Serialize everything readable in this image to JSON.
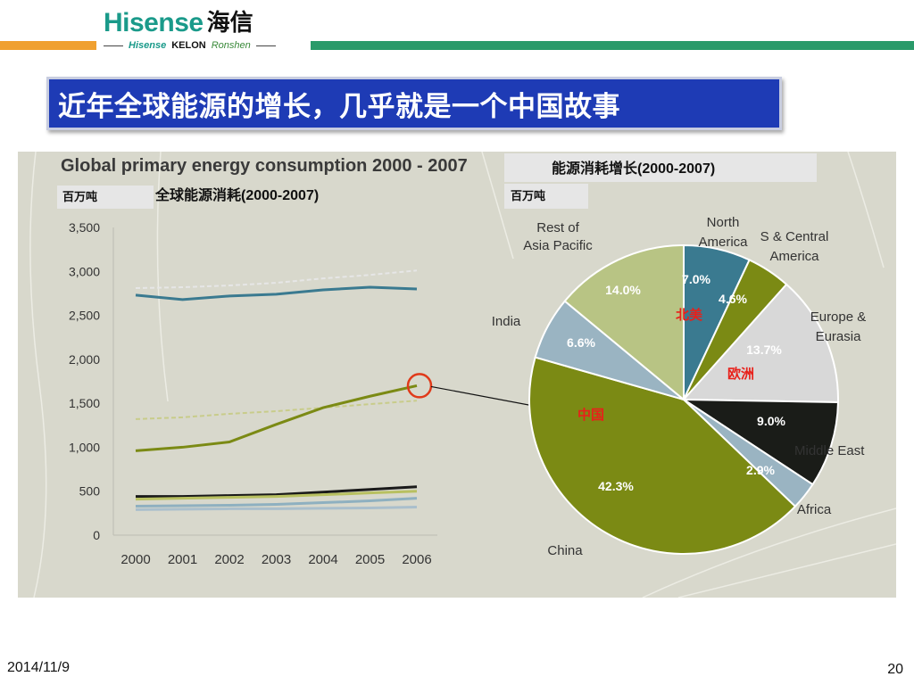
{
  "header": {
    "logo_text": "Hisense",
    "logo_cn": "海信",
    "sub_logos": [
      "Hisense",
      "KELON",
      "Ronshen"
    ]
  },
  "title": "近年全球能源的增长，几乎就是一个中国故事",
  "footer": {
    "date": "2014/11/9",
    "page": "20"
  },
  "chart_data": [
    {
      "type": "line",
      "title": "Global primary energy consumption 2000 - 2007",
      "subtitle_cn": "全球能源消耗(2000-2007)",
      "unit_label": "百万吨",
      "x": [
        "2000",
        "2001",
        "2002",
        "2003",
        "2004",
        "2005",
        "2006"
      ],
      "yticks": [
        "3,500",
        "3,000",
        "2,500",
        "2,000",
        "1,500",
        "1,000",
        "500",
        "0"
      ],
      "ylim": [
        0,
        3500
      ],
      "series": [
        {
          "values": [
            2810,
            2820,
            2840,
            2870,
            2920,
            2960,
            3010
          ],
          "color": "#e6e6e6",
          "dashed": true
        },
        {
          "values": [
            2730,
            2680,
            2720,
            2740,
            2790,
            2820,
            2800
          ],
          "color": "#3a7a90"
        },
        {
          "values": [
            1320,
            1340,
            1380,
            1410,
            1450,
            1490,
            1530
          ],
          "color": "#c8cc8a",
          "dashed": true
        },
        {
          "values": [
            960,
            1000,
            1060,
            1260,
            1450,
            1580,
            1700
          ],
          "color": "#7b8a14"
        },
        {
          "values": [
            440,
            440,
            450,
            460,
            490,
            520,
            550
          ],
          "color": "#1a1a1a"
        },
        {
          "values": [
            410,
            420,
            430,
            440,
            460,
            480,
            500
          ],
          "color": "#b8c060"
        },
        {
          "values": [
            330,
            335,
            340,
            350,
            370,
            390,
            420
          ],
          "color": "#8eb0c0"
        },
        {
          "values": [
            290,
            295,
            300,
            300,
            305,
            310,
            320
          ],
          "color": "#aabfcc"
        }
      ]
    },
    {
      "type": "pie",
      "title": "能源消耗增长(2000-2007)",
      "unit_label": "百万吨",
      "slices": [
        {
          "label": "North America",
          "value": 7.0,
          "text": "7.0%",
          "color": "#3a7a90"
        },
        {
          "label": "S & Central America",
          "value": 4.6,
          "text": "4.6%",
          "color": "#7b8a14"
        },
        {
          "label": "Europe & Eurasia",
          "value": 13.7,
          "text": "13.7%",
          "color": "#d8d8d8"
        },
        {
          "label": "Middle East",
          "value": 9.0,
          "text": "9.0%",
          "color": "#1a1c18"
        },
        {
          "label": "Africa",
          "value": 2.9,
          "text": "2.9%",
          "color": "#9ab4c2"
        },
        {
          "label": "China",
          "value": 42.3,
          "text": "42.3%",
          "color": "#7b8a14"
        },
        {
          "label": "India",
          "value": 6.6,
          "text": "6.6%",
          "color": "#9ab4c2"
        },
        {
          "label": "Rest of Asia Pacific",
          "value": 14.0,
          "text": "14.0%",
          "color": "#b8c484"
        }
      ],
      "annotations_cn": {
        "north_america": "北美",
        "europe": "欧洲",
        "china": "中国"
      }
    }
  ]
}
